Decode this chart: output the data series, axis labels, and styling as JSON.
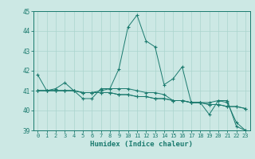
{
  "xlabel": "Humidex (Indice chaleur)",
  "bg_color": "#cce8e4",
  "line_color": "#1a7a6e",
  "grid_color": "#aad4ce",
  "xlim": [
    -0.5,
    23.5
  ],
  "ylim": [
    39,
    45
  ],
  "yticks": [
    39,
    40,
    41,
    42,
    43,
    44,
    45
  ],
  "xticks": [
    0,
    1,
    2,
    3,
    4,
    5,
    6,
    7,
    8,
    9,
    10,
    11,
    12,
    13,
    14,
    15,
    16,
    17,
    18,
    19,
    20,
    21,
    22,
    23
  ],
  "series": {
    "line1": [
      41.8,
      41.0,
      41.1,
      41.4,
      41.0,
      40.6,
      40.6,
      41.1,
      41.1,
      42.1,
      44.2,
      44.8,
      43.5,
      43.2,
      41.3,
      41.6,
      42.2,
      40.4,
      40.4,
      39.8,
      40.5,
      40.5,
      39.2,
      39.0
    ],
    "line2": [
      41.0,
      41.0,
      41.0,
      41.0,
      41.0,
      40.9,
      40.9,
      40.9,
      40.9,
      40.8,
      40.8,
      40.7,
      40.7,
      40.6,
      40.6,
      40.5,
      40.5,
      40.4,
      40.4,
      40.3,
      40.3,
      40.2,
      40.2,
      40.1
    ],
    "line3": [
      41.0,
      41.0,
      41.0,
      41.0,
      41.0,
      40.9,
      40.9,
      40.9,
      40.9,
      40.8,
      40.8,
      40.7,
      40.7,
      40.6,
      40.6,
      40.5,
      40.5,
      40.4,
      40.4,
      40.3,
      40.3,
      40.2,
      40.2,
      40.1
    ],
    "line4": [
      41.0,
      41.0,
      41.0,
      41.0,
      41.0,
      40.9,
      40.9,
      41.0,
      41.1,
      41.1,
      41.1,
      41.0,
      40.9,
      40.9,
      40.8,
      40.5,
      40.5,
      40.4,
      40.4,
      40.4,
      40.5,
      40.4,
      39.4,
      39.0
    ]
  }
}
